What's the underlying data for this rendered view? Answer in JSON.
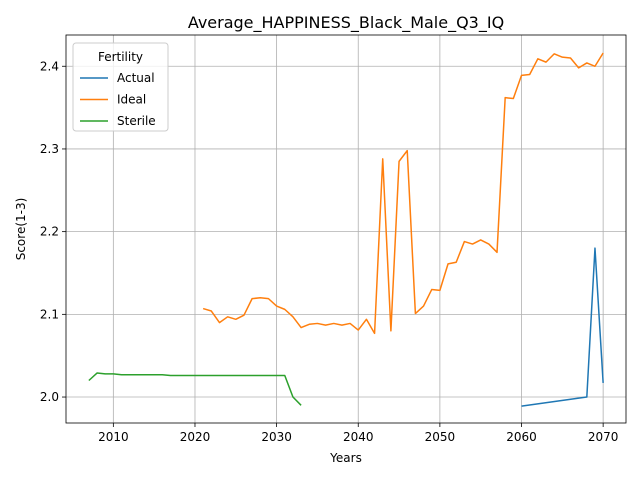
{
  "chart_data": {
    "type": "line",
    "title": "Average_HAPPINESS_Black_Male_Q3_IQ",
    "xlabel": "Years",
    "ylabel": "Score(1-3)",
    "xlim": [
      2004.2,
      2072.8
    ],
    "ylim": [
      1.9686,
      2.4378
    ],
    "xticks": [
      2010,
      2020,
      2030,
      2040,
      2050,
      2060,
      2070
    ],
    "yticks": [
      2.0,
      2.1,
      2.2,
      2.3,
      2.4
    ],
    "ytick_labels": [
      "2.0",
      "2.1",
      "2.2",
      "2.3",
      "2.4"
    ],
    "grid": true,
    "legend": {
      "title": "Fertility",
      "position": "top-left"
    },
    "series": [
      {
        "name": "Actual",
        "color": "#1f77b4",
        "x": [
          2060,
          2068,
          2069,
          2070
        ],
        "y": [
          1.989,
          2.0,
          2.18,
          2.017
        ]
      },
      {
        "name": "Ideal",
        "color": "#ff7f0e",
        "x": [
          2021,
          2022,
          2023,
          2024,
          2025,
          2026,
          2027,
          2028,
          2029,
          2030,
          2031,
          2032,
          2033,
          2034,
          2035,
          2036,
          2037,
          2038,
          2039,
          2040,
          2041,
          2042,
          2043,
          2044,
          2045,
          2046,
          2047,
          2048,
          2049,
          2050,
          2051,
          2052,
          2053,
          2054,
          2055,
          2056,
          2057,
          2058,
          2059,
          2060,
          2061,
          2062,
          2063,
          2064,
          2065,
          2066,
          2067,
          2068,
          2069,
          2070
        ],
        "y": [
          2.107,
          2.104,
          2.09,
          2.097,
          2.094,
          2.099,
          2.119,
          2.12,
          2.119,
          2.11,
          2.106,
          2.097,
          2.084,
          2.088,
          2.089,
          2.087,
          2.089,
          2.087,
          2.089,
          2.081,
          2.094,
          2.077,
          2.288,
          2.08,
          2.285,
          2.298,
          2.101,
          2.11,
          2.13,
          2.129,
          2.161,
          2.163,
          2.188,
          2.185,
          2.19,
          2.185,
          2.175,
          2.362,
          2.361,
          2.389,
          2.39,
          2.409,
          2.405,
          2.415,
          2.411,
          2.41,
          2.398,
          2.404,
          2.4,
          2.416
        ]
      },
      {
        "name": "Sterile",
        "color": "#2ca02c",
        "x": [
          2007,
          2008,
          2009,
          2010,
          2011,
          2012,
          2013,
          2014,
          2015,
          2016,
          2017,
          2018,
          2019,
          2020,
          2021,
          2022,
          2023,
          2024,
          2025,
          2026,
          2027,
          2028,
          2029,
          2030,
          2031,
          2032,
          2033
        ],
        "y": [
          2.02,
          2.029,
          2.028,
          2.028,
          2.027,
          2.027,
          2.027,
          2.027,
          2.027,
          2.027,
          2.026,
          2.026,
          2.026,
          2.026,
          2.026,
          2.026,
          2.026,
          2.026,
          2.026,
          2.026,
          2.026,
          2.026,
          2.026,
          2.026,
          2.026,
          2.0,
          1.99
        ]
      }
    ]
  }
}
